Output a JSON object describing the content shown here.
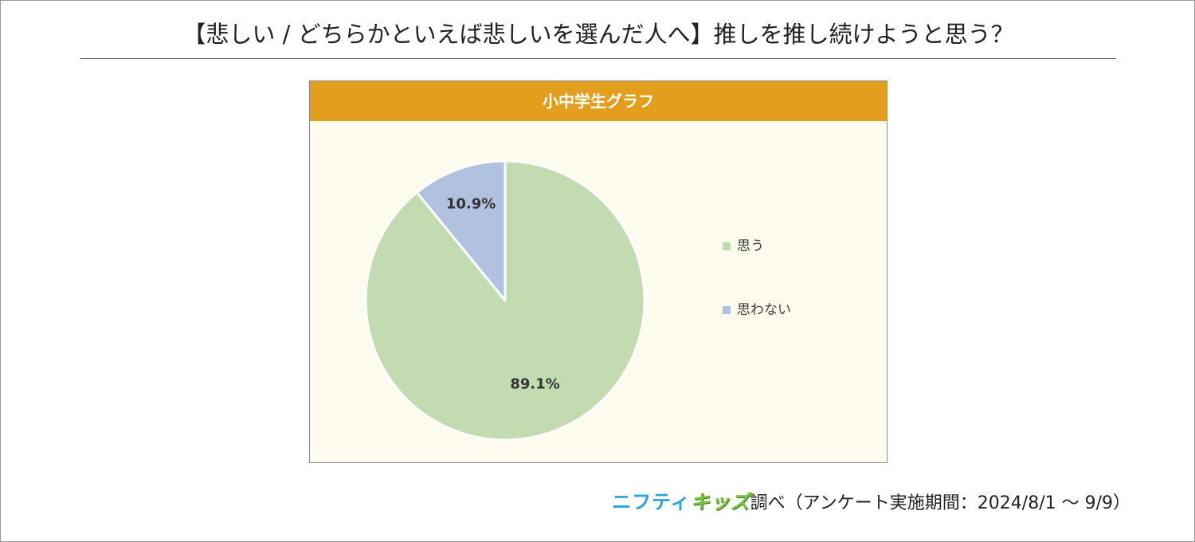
{
  "page": {
    "title": "【悲しい / どちらかといえば悲しいを選んだ人へ】推しを推し続けようと思う？"
  },
  "chart_data": {
    "type": "pie",
    "title": "小中学生グラフ",
    "categories": [
      "思う",
      "思わない"
    ],
    "values": [
      89.1,
      10.9
    ],
    "labels": [
      "89.1%",
      "10.9%"
    ],
    "colors": [
      "#c3dbb0",
      "#b1c1e0"
    ],
    "legend_position": "right"
  },
  "footer": {
    "brand_part1": "ニフティ",
    "brand_part2": "キッズ",
    "text": "調べ（アンケート実施期間：2024/8/1 ～ 9/9）"
  },
  "colors": {
    "header": "#e19f1d",
    "panel_bg": "#fdfbee"
  }
}
